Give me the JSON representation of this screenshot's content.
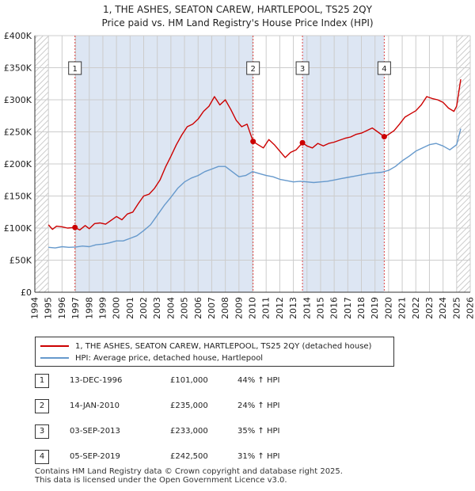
{
  "title": {
    "line1": "1, THE ASHES, SEATON CAREW, HARTLEPOOL, TS25 2QY",
    "line2": "Price paid vs. HM Land Registry's House Price Index (HPI)"
  },
  "colors": {
    "red": "#cc0000",
    "blue": "#6699cc",
    "grid": "#cccccc",
    "band": "#dde6f3",
    "hatch": "#bbbbbb",
    "vline": "#dd4444"
  },
  "legend": {
    "red_label": "1, THE ASHES, SEATON CAREW, HARTLEPOOL, TS25 2QY (detached house)",
    "blue_label": "HPI: Average price, detached house, Hartlepool"
  },
  "sales": [
    {
      "num": "1",
      "date": "13-DEC-1996",
      "price": "£101,000",
      "hpi": "44% ↑ HPI"
    },
    {
      "num": "2",
      "date": "14-JAN-2010",
      "price": "£235,000",
      "hpi": "24% ↑ HPI"
    },
    {
      "num": "3",
      "date": "03-SEP-2013",
      "price": "£233,000",
      "hpi": "35% ↑ HPI"
    },
    {
      "num": "4",
      "date": "05-SEP-2019",
      "price": "£242,500",
      "hpi": "31% ↑ HPI"
    }
  ],
  "footer": {
    "line1": "Contains HM Land Registry data © Crown copyright and database right 2025.",
    "line2": "This data is licensed under the Open Government Licence v3.0."
  },
  "chart_data": {
    "type": "line",
    "title": "1, THE ASHES, SEATON CAREW, HARTLEPOOL, TS25 2QY — Price paid vs. HM Land Registry's House Price Index (HPI)",
    "xlim": [
      1994,
      2026
    ],
    "ylim": [
      0,
      400000
    ],
    "x_ticks": [
      1994,
      1995,
      1996,
      1997,
      1998,
      1999,
      2000,
      2001,
      2002,
      2003,
      2004,
      2005,
      2006,
      2007,
      2008,
      2009,
      2010,
      2011,
      2012,
      2013,
      2014,
      2015,
      2016,
      2017,
      2018,
      2019,
      2020,
      2021,
      2022,
      2023,
      2024,
      2025,
      2026
    ],
    "y_ticks": [
      {
        "v": 0,
        "label": "£0"
      },
      {
        "v": 50000,
        "label": "£50K"
      },
      {
        "v": 100000,
        "label": "£100K"
      },
      {
        "v": 150000,
        "label": "£150K"
      },
      {
        "v": 200000,
        "label": "£200K"
      },
      {
        "v": 250000,
        "label": "£250K"
      },
      {
        "v": 300000,
        "label": "£300K"
      },
      {
        "v": 350000,
        "label": "£350K"
      },
      {
        "v": 400000,
        "label": "£400K"
      }
    ],
    "grid": true,
    "hatched_ranges": [
      [
        1994,
        1995.0
      ],
      [
        2025.0,
        2026
      ]
    ],
    "shaded_ranges": [
      [
        1996.95,
        2010.04
      ],
      [
        2013.67,
        2019.68
      ]
    ],
    "series": [
      {
        "name": "1, THE ASHES, SEATON CAREW, HARTLEPOOL, TS25 2QY (detached house)",
        "color": "#cc0000",
        "x": [
          1995.0,
          1995.3,
          1995.6,
          1996.0,
          1996.4,
          1996.95,
          1997.3,
          1997.7,
          1998.0,
          1998.4,
          1998.8,
          1999.2,
          1999.6,
          2000.0,
          2000.4,
          2000.8,
          2001.2,
          2001.6,
          2002.0,
          2002.4,
          2002.8,
          2003.2,
          2003.6,
          2004.0,
          2004.4,
          2004.8,
          2005.2,
          2005.6,
          2006.0,
          2006.4,
          2006.8,
          2007.2,
          2007.6,
          2008.0,
          2008.4,
          2008.8,
          2009.2,
          2009.6,
          2010.04,
          2010.4,
          2010.8,
          2011.2,
          2011.6,
          2012.0,
          2012.4,
          2012.8,
          2013.2,
          2013.67,
          2014.0,
          2014.4,
          2014.8,
          2015.2,
          2015.6,
          2016.0,
          2016.4,
          2016.8,
          2017.2,
          2017.6,
          2018.0,
          2018.4,
          2018.8,
          2019.2,
          2019.68,
          2020.0,
          2020.4,
          2020.8,
          2021.2,
          2021.6,
          2022.0,
          2022.4,
          2022.8,
          2023.2,
          2023.6,
          2024.0,
          2024.4,
          2024.8,
          2025.0,
          2025.3
        ],
        "y": [
          105000,
          98000,
          103000,
          102000,
          100000,
          101000,
          97000,
          104000,
          99000,
          107000,
          108000,
          106000,
          112000,
          118000,
          113000,
          122000,
          125000,
          138000,
          150000,
          153000,
          162000,
          175000,
          195000,
          212000,
          230000,
          245000,
          258000,
          262000,
          270000,
          282000,
          290000,
          305000,
          292000,
          300000,
          285000,
          268000,
          258000,
          262000,
          235000,
          230000,
          225000,
          238000,
          230000,
          220000,
          210000,
          218000,
          222000,
          233000,
          228000,
          225000,
          232000,
          228000,
          232000,
          234000,
          237000,
          240000,
          242000,
          246000,
          248000,
          252000,
          256000,
          250000,
          242500,
          246000,
          252000,
          262000,
          273000,
          278000,
          283000,
          292000,
          305000,
          302000,
          300000,
          296000,
          287000,
          282000,
          290000,
          332000
        ]
      },
      {
        "name": "HPI: Average price, detached house, Hartlepool",
        "color": "#6699cc",
        "x": [
          1995.0,
          1995.5,
          1996.0,
          1996.5,
          1997.0,
          1997.5,
          1998.0,
          1998.5,
          1999.0,
          1999.5,
          2000.0,
          2000.5,
          2001.0,
          2001.5,
          2002.0,
          2002.5,
          2003.0,
          2003.5,
          2004.0,
          2004.5,
          2005.0,
          2005.5,
          2006.0,
          2006.5,
          2007.0,
          2007.5,
          2008.0,
          2008.5,
          2009.0,
          2009.5,
          2010.0,
          2010.5,
          2011.0,
          2011.5,
          2012.0,
          2012.5,
          2013.0,
          2013.5,
          2014.0,
          2014.5,
          2015.0,
          2015.5,
          2016.0,
          2016.5,
          2017.0,
          2017.5,
          2018.0,
          2018.5,
          2019.0,
          2019.5,
          2020.0,
          2020.5,
          2021.0,
          2021.5,
          2022.0,
          2022.5,
          2023.0,
          2023.5,
          2024.0,
          2024.5,
          2025.0,
          2025.3
        ],
        "y": [
          70000,
          69000,
          71000,
          70000,
          70500,
          72000,
          71000,
          74000,
          75000,
          77000,
          80000,
          80000,
          84000,
          88000,
          96000,
          105000,
          120000,
          135000,
          148000,
          162000,
          172000,
          178000,
          182000,
          188000,
          192000,
          196000,
          196000,
          188000,
          180000,
          182000,
          188000,
          185000,
          182000,
          180000,
          176000,
          174000,
          172000,
          173000,
          172000,
          171000,
          172000,
          173000,
          175000,
          177000,
          179000,
          181000,
          183000,
          185000,
          186000,
          187000,
          190000,
          196000,
          205000,
          212000,
          220000,
          225000,
          230000,
          232000,
          228000,
          222000,
          230000,
          255000
        ]
      }
    ],
    "sale_points": [
      {
        "label": "1",
        "x": 1996.95,
        "y": 101000
      },
      {
        "label": "2",
        "x": 2010.04,
        "y": 235000
      },
      {
        "label": "3",
        "x": 2013.67,
        "y": 233000
      },
      {
        "label": "4",
        "x": 2019.68,
        "y": 242500
      }
    ]
  }
}
